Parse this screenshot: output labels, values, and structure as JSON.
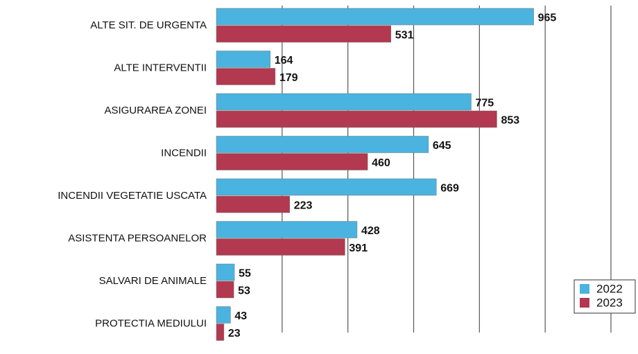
{
  "chart_data": {
    "type": "hbar",
    "categories": [
      "ALTE SIT. DE URGENTA",
      "ALTE INTERVENTII",
      "ASIGURAREA ZONEI",
      "INCENDII",
      "INCENDII VEGETATIE USCATA",
      "ASISTENTA PERSOANELOR",
      "SALVARI DE ANIMALE",
      "PROTECTIA MEDIULUI"
    ],
    "series": [
      {
        "name": "2022",
        "color": "#4ab3df",
        "values": [
          965,
          164,
          775,
          645,
          669,
          428,
          55,
          43
        ]
      },
      {
        "name": "2023",
        "color": "#b2394f",
        "values": [
          531,
          179,
          853,
          460,
          223,
          391,
          53,
          23
        ]
      }
    ],
    "xlim": [
      0,
      1200
    ],
    "gridlines": [
      200,
      400,
      600,
      800,
      1000,
      1200
    ],
    "legend": "lower right"
  }
}
